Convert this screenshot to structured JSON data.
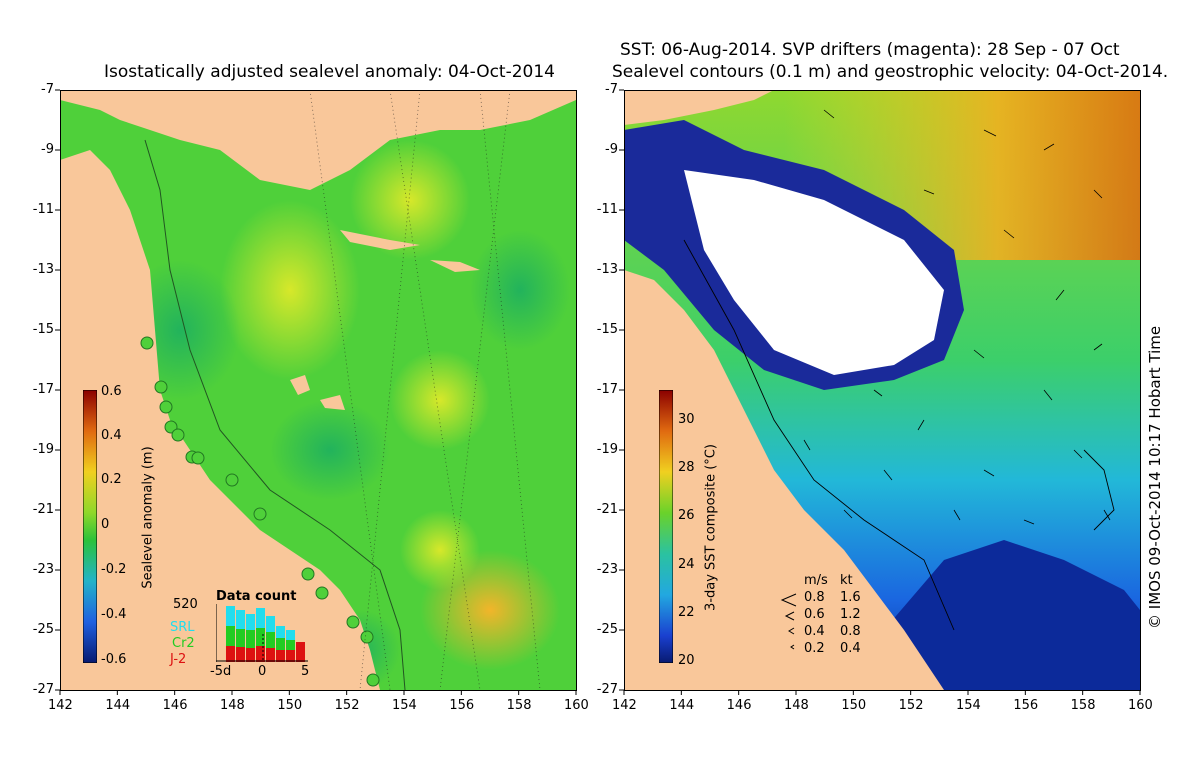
{
  "left_panel": {
    "title": "Isostatically adjusted sealevel anomaly: 04-Oct-2014",
    "colorbar": {
      "label": "Sealevel anomaly (m)",
      "ticks": [
        "0.6",
        "0.4",
        "0.2",
        "0",
        "-0.2",
        "-0.4",
        "-0.6"
      ]
    },
    "data_count": {
      "title": "Data count",
      "max_label": "520",
      "series": [
        "SRL",
        "Cr2",
        "J-2"
      ],
      "series_colors": [
        "#22ddee",
        "#22cc22",
        "#dd1111"
      ],
      "x_ticks": [
        "-5d",
        "0",
        "5"
      ]
    }
  },
  "right_panel": {
    "title_line1": "SST: 06-Aug-2014. SVP drifters (magenta): 28 Sep - 07 Oct",
    "title_line2": "Sealevel contours (0.1 m) and geostrophic velocity: 04-Oct-2014.",
    "colorbar": {
      "label": "3-day SST composite (°C)",
      "ticks": [
        "30",
        "28",
        "26",
        "24",
        "22",
        "20"
      ]
    },
    "velocity_legend": {
      "header_ms": "m/s",
      "header_kt": "kt",
      "rows": [
        {
          "ms": "0.8",
          "kt": "1.6"
        },
        {
          "ms": "0.6",
          "kt": "1.2"
        },
        {
          "ms": "0.4",
          "kt": "0.8"
        },
        {
          "ms": "0.2",
          "kt": "0.4"
        }
      ]
    }
  },
  "axes": {
    "y_ticks": [
      "-7",
      "-9",
      "-11",
      "-13",
      "-15",
      "-17",
      "-19",
      "-21",
      "-23",
      "-25",
      "-27"
    ],
    "x_ticks": [
      "142",
      "144",
      "146",
      "148",
      "150",
      "152",
      "154",
      "156",
      "158",
      "160"
    ]
  },
  "credit": "© IMOS 09-Oct-2014 10:17 Hobart Time",
  "colors": {
    "land": "#f9c79a",
    "ocean_green": "#3fcf2a",
    "sst_white": "#ffffff",
    "sst_navy": "#0a1a8a"
  }
}
